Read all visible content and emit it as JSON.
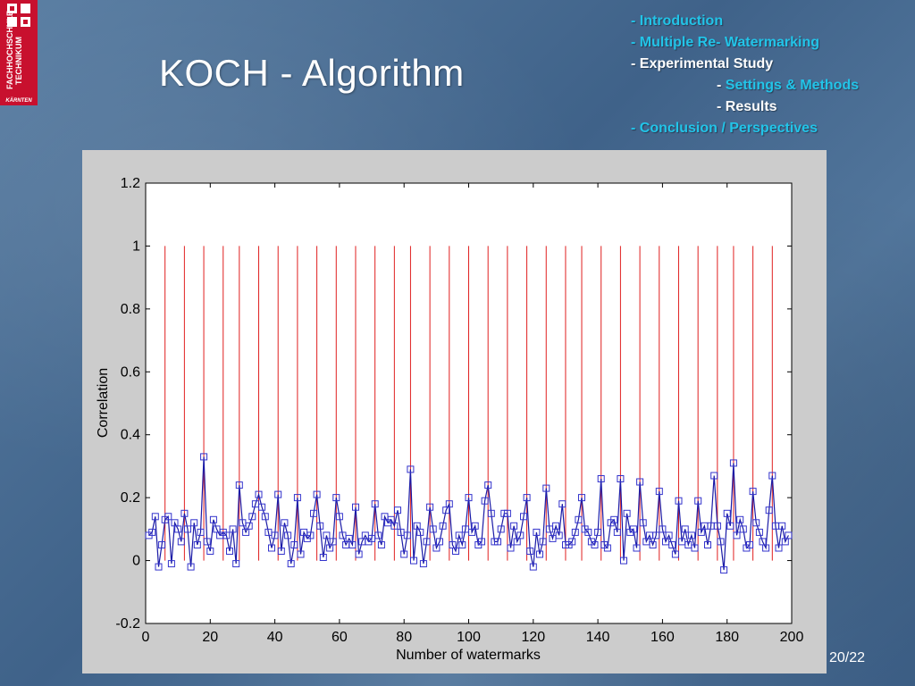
{
  "logo": {
    "name": "FACHHOCHSCHULE TECHNIKUM",
    "city": "KÄRNTEN"
  },
  "slide": {
    "title": "KOCH - Algorithm",
    "page": "20/22"
  },
  "outline": {
    "items": [
      {
        "prefix": "- ",
        "text": "Introduction",
        "style": "highlight",
        "indent": false
      },
      {
        "prefix": "- ",
        "text": "Multiple Re- Watermarking",
        "style": "highlight",
        "indent": false
      },
      {
        "prefix": "- ",
        "text": "Experimental Study",
        "style": "white",
        "indent": false
      },
      {
        "prefix": "- ",
        "text": "Settings & Methods",
        "style": "highlight",
        "indent": true
      },
      {
        "prefix": "- ",
        "text": "Results",
        "style": "white",
        "indent": true
      },
      {
        "prefix": "- ",
        "text": "Conclusion / Perspectives",
        "style": "highlight",
        "indent": false
      }
    ]
  },
  "colors": {
    "highlight": "#22c4e8",
    "series_line": "#1a1aa6",
    "series_marker": "#3333cc",
    "stem": "#e02020",
    "plot_bg": "#ffffff",
    "panel_bg": "#cccccc"
  },
  "chart_data": {
    "type": "line",
    "title": "",
    "xlabel": "Number of watermarks",
    "ylabel": "Correlation",
    "xlim": [
      0,
      200
    ],
    "ylim": [
      -0.2,
      1.2
    ],
    "xticks": [
      0,
      20,
      40,
      60,
      80,
      100,
      120,
      140,
      160,
      180,
      200
    ],
    "yticks": [
      -0.2,
      0,
      0.2,
      0.4,
      0.6,
      0.8,
      1,
      1.2
    ],
    "ytick_labels": [
      "-0.2",
      "0",
      "0.2",
      "0.4",
      "0.6",
      "0.8",
      "1",
      "1.2"
    ],
    "stems": {
      "x": [
        6,
        12,
        18,
        24,
        29,
        35,
        41,
        47,
        53,
        59,
        65,
        71,
        77,
        82,
        88,
        94,
        100,
        106,
        112,
        118,
        124,
        130,
        135,
        141,
        147,
        153,
        159,
        165,
        171,
        177,
        182,
        188,
        194
      ],
      "y0": 0,
      "y1": 1
    },
    "series": [
      {
        "marker": "square",
        "x": [
          1,
          2,
          3,
          4,
          5,
          6,
          7,
          8,
          9,
          10,
          11,
          12,
          13,
          14,
          15,
          16,
          17,
          18,
          19,
          20,
          21,
          22,
          23,
          24,
          25,
          26,
          27,
          28,
          29,
          30,
          31,
          32,
          33,
          34,
          35,
          36,
          37,
          38,
          39,
          40,
          41,
          42,
          43,
          44,
          45,
          46,
          47,
          48,
          49,
          50,
          51,
          52,
          53,
          54,
          55,
          56,
          57,
          58,
          59,
          60,
          61,
          62,
          63,
          64,
          65,
          66,
          67,
          68,
          69,
          70,
          71,
          72,
          73,
          74,
          75,
          76,
          77,
          78,
          79,
          80,
          81,
          82,
          83,
          84,
          85,
          86,
          87,
          88,
          89,
          90,
          91,
          92,
          93,
          94,
          95,
          96,
          97,
          98,
          99,
          100,
          101,
          102,
          103,
          104,
          105,
          106,
          107,
          108,
          109,
          110,
          111,
          112,
          113,
          114,
          115,
          116,
          117,
          118,
          119,
          120,
          121,
          122,
          123,
          124,
          125,
          126,
          127,
          128,
          129,
          130,
          131,
          132,
          133,
          134,
          135,
          136,
          137,
          138,
          139,
          140,
          141,
          142,
          143,
          144,
          145,
          146,
          147,
          148,
          149,
          150,
          151,
          152,
          153,
          154,
          155,
          156,
          157,
          158,
          159,
          160,
          161,
          162,
          163,
          164,
          165,
          166,
          167,
          168,
          169,
          170,
          171,
          172,
          173,
          174,
          175,
          176,
          177,
          178,
          179,
          180,
          181,
          182,
          183,
          184,
          185,
          186,
          187,
          188,
          189,
          190,
          191,
          192,
          193,
          194,
          195,
          196,
          197,
          198,
          199
        ],
        "values": [
          0.08,
          0.09,
          0.14,
          -0.02,
          0.05,
          0.13,
          0.14,
          -0.01,
          0.12,
          0.1,
          0.06,
          0.15,
          0.1,
          -0.02,
          0.12,
          0.05,
          0.09,
          0.33,
          0.06,
          0.03,
          0.13,
          0.1,
          0.08,
          0.09,
          0.08,
          0.03,
          0.1,
          -0.01,
          0.24,
          0.12,
          0.09,
          0.11,
          0.14,
          0.18,
          0.21,
          0.17,
          0.14,
          0.09,
          0.04,
          0.08,
          0.21,
          0.03,
          0.12,
          0.08,
          -0.01,
          0.05,
          0.2,
          0.02,
          0.09,
          0.07,
          0.08,
          0.15,
          0.21,
          0.11,
          0.01,
          0.08,
          0.04,
          0.06,
          0.2,
          0.14,
          0.08,
          0.05,
          0.07,
          0.05,
          0.17,
          0.02,
          0.06,
          0.08,
          0.06,
          0.07,
          0.18,
          0.08,
          0.05,
          0.14,
          0.12,
          0.13,
          0.11,
          0.16,
          0.09,
          0.02,
          0.08,
          0.29,
          0.0,
          0.11,
          0.09,
          -0.01,
          0.06,
          0.17,
          0.1,
          0.04,
          0.06,
          0.11,
          0.16,
          0.18,
          0.05,
          0.03,
          0.08,
          0.05,
          0.1,
          0.2,
          0.09,
          0.11,
          0.05,
          0.06,
          0.19,
          0.24,
          0.15,
          0.06,
          0.06,
          0.1,
          0.15,
          0.15,
          0.04,
          0.11,
          0.06,
          0.08,
          0.14,
          0.2,
          0.03,
          -0.02,
          0.09,
          0.02,
          0.06,
          0.23,
          0.1,
          0.07,
          0.11,
          0.08,
          0.18,
          0.05,
          0.05,
          0.06,
          0.09,
          0.13,
          0.2,
          0.1,
          0.09,
          0.06,
          0.05,
          0.09,
          0.26,
          0.05,
          0.04,
          0.12,
          0.13,
          0.09,
          0.26,
          0.0,
          0.15,
          0.09,
          0.1,
          0.04,
          0.25,
          0.12,
          0.06,
          0.08,
          0.05,
          0.08,
          0.22,
          0.1,
          0.06,
          0.08,
          0.05,
          0.02,
          0.19,
          0.06,
          0.1,
          0.05,
          0.08,
          0.04,
          0.19,
          0.09,
          0.11,
          0.05,
          0.11,
          0.27,
          0.11,
          0.06,
          -0.03,
          0.15,
          0.11,
          0.31,
          0.08,
          0.13,
          0.1,
          0.04,
          0.05,
          0.22,
          0.12,
          0.09,
          0.06,
          0.04,
          0.16,
          0.27,
          0.11,
          0.04,
          0.11,
          0.06,
          0.08
        ]
      }
    ],
    "grid": false,
    "legend": "none"
  }
}
